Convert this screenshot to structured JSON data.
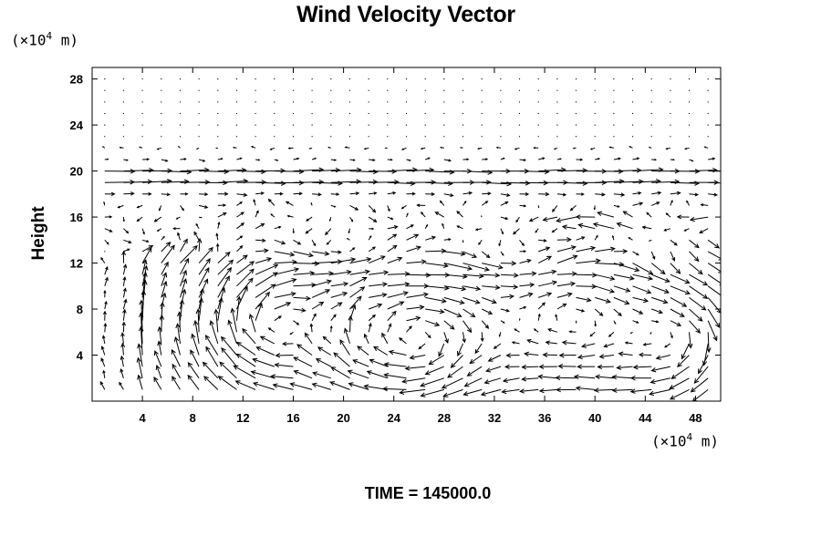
{
  "chart_data": {
    "type": "vector-field",
    "title": "Wind Velocity Vector",
    "ylabel": "Height",
    "xlabel": "",
    "x_unit": {
      "prefix": "(×10",
      "exp": "4",
      "suffix": " m)"
    },
    "y_unit": {
      "prefix": "(×10",
      "exp": "4",
      "suffix": " m)"
    },
    "footer": "TIME = 145000.0",
    "xlim": [
      0,
      50
    ],
    "ylim": [
      0,
      29
    ],
    "x_ticks": [
      4,
      8,
      12,
      16,
      20,
      24,
      28,
      32,
      36,
      40,
      44,
      48
    ],
    "y_ticks": [
      4,
      8,
      12,
      16,
      20,
      24,
      28
    ],
    "grid": false,
    "arrow_color": "#000000",
    "vortices": [
      {
        "x": 14,
        "y": 6.5,
        "rotation": "clockwise",
        "strength": 1.0
      },
      {
        "x": 26,
        "y": 5.5,
        "rotation": "clockwise",
        "strength": 1.0
      },
      {
        "x": 38,
        "y": 7.5,
        "rotation": "clockwise",
        "strength": 0.7
      },
      {
        "x": 47,
        "y": 5.5,
        "rotation": "clockwise",
        "strength": 0.8
      }
    ],
    "jet": {
      "y_center": 19.5,
      "y_halfwidth": 1.3,
      "direction": "east",
      "speed": 2.6
    },
    "upper_return_flow": {
      "y_center": 21.5,
      "direction": "west",
      "speed": 0.5
    },
    "updraft_columns_x": [
      4,
      18,
      20
    ]
  }
}
